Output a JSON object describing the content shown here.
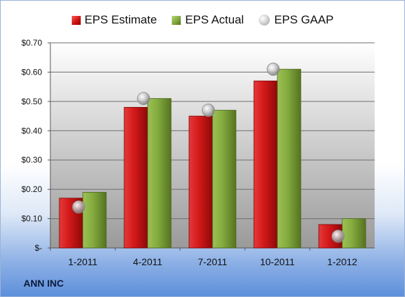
{
  "chart_data": {
    "type": "bar",
    "categories": [
      "1-2011",
      "4-2011",
      "7-2011",
      "10-2011",
      "1-2012"
    ],
    "series": [
      {
        "name": "EPS Estimate",
        "values": [
          0.17,
          0.48,
          0.45,
          0.57,
          0.08
        ],
        "color": "#c81515"
      },
      {
        "name": "EPS Actual",
        "values": [
          0.19,
          0.51,
          0.47,
          0.61,
          0.1
        ],
        "color": "#7ea33a"
      }
    ],
    "markers": {
      "name": "EPS GAAP",
      "values": [
        0.14,
        0.51,
        0.47,
        0.61,
        0.04
      ],
      "color": "#a8a8a8"
    },
    "ylim": [
      0,
      0.7
    ],
    "yticks": [
      0,
      0.1,
      0.2,
      0.3,
      0.4,
      0.5,
      0.6,
      0.7
    ],
    "ytick_labels": [
      "$-",
      "$0.10",
      "$0.20",
      "$0.30",
      "$0.40",
      "$0.50",
      "$0.60",
      "$0.70"
    ],
    "grid": true,
    "legend_position": "top"
  },
  "footer": {
    "company": "ANN INC"
  }
}
